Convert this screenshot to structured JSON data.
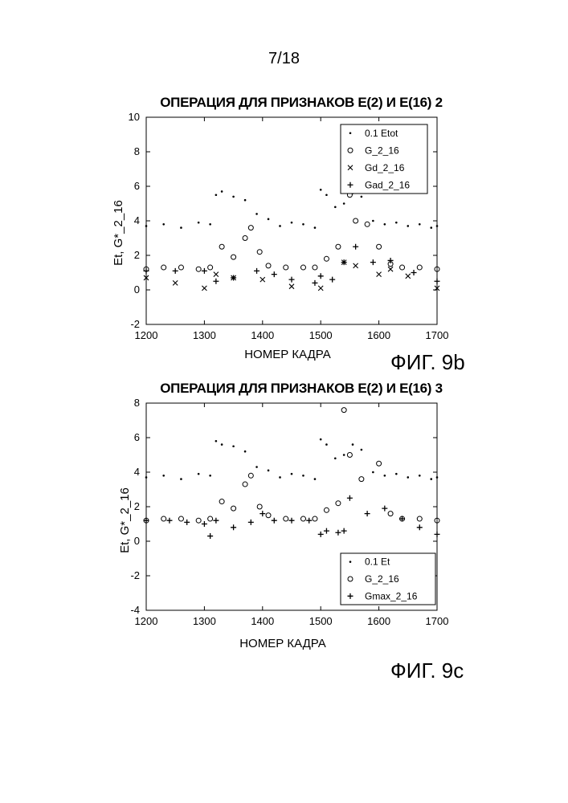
{
  "page": {
    "number": "7/18"
  },
  "figures": [
    {
      "label": "ФИГ. 9b"
    },
    {
      "label": "ФИГ. 9c"
    }
  ],
  "chart_data": [
    {
      "type": "scatter",
      "title": "ОПЕРАЦИЯ ДЛЯ ПРИЗНАКОВ E(2) И E(16) 2",
      "xlabel": "НОМЕР КАДРА",
      "ylabel": "Et, G*_2_16",
      "xlim": [
        1200,
        1700
      ],
      "ylim": [
        -2,
        10
      ],
      "xticks": [
        1200,
        1300,
        1400,
        1500,
        1600,
        1700
      ],
      "yticks": [
        -2,
        0,
        2,
        4,
        6,
        8,
        10
      ],
      "legend_position": "top-right",
      "series": [
        {
          "name": "0.1 Etot",
          "marker": "dot",
          "x": [
            1200,
            1230,
            1260,
            1290,
            1310,
            1320,
            1330,
            1350,
            1370,
            1390,
            1410,
            1430,
            1450,
            1470,
            1490,
            1500,
            1510,
            1525,
            1540,
            1555,
            1570,
            1590,
            1610,
            1630,
            1650,
            1670,
            1690,
            1700
          ],
          "y": [
            3.7,
            3.8,
            3.6,
            3.9,
            3.8,
            5.5,
            5.7,
            5.4,
            5.2,
            4.4,
            4.1,
            3.7,
            3.9,
            3.8,
            3.6,
            5.8,
            5.5,
            4.8,
            5.0,
            5.6,
            5.4,
            4.0,
            3.8,
            3.9,
            3.7,
            3.8,
            3.6,
            3.7
          ]
        },
        {
          "name": "G_2_16",
          "marker": "circle",
          "x": [
            1200,
            1230,
            1260,
            1290,
            1310,
            1330,
            1350,
            1370,
            1380,
            1395,
            1410,
            1440,
            1470,
            1490,
            1510,
            1530,
            1550,
            1560,
            1580,
            1600,
            1620,
            1640,
            1670,
            1700
          ],
          "y": [
            1.2,
            1.3,
            1.3,
            1.2,
            1.3,
            2.5,
            1.9,
            3.0,
            3.6,
            2.2,
            1.4,
            1.3,
            1.3,
            1.3,
            1.8,
            2.5,
            5.5,
            4.0,
            3.8,
            2.5,
            1.5,
            1.3,
            1.3,
            1.2
          ]
        },
        {
          "name": "Gd_2_16",
          "marker": "x",
          "x": [
            1200,
            1250,
            1300,
            1320,
            1350,
            1400,
            1450,
            1500,
            1540,
            1560,
            1600,
            1620,
            1650,
            1700
          ],
          "y": [
            0.7,
            0.4,
            0.1,
            0.9,
            0.7,
            0.6,
            0.2,
            0.1,
            1.6,
            1.4,
            0.9,
            1.2,
            0.8,
            0.1
          ]
        },
        {
          "name": "Gad_2_16",
          "marker": "plus",
          "x": [
            1200,
            1250,
            1300,
            1320,
            1350,
            1390,
            1420,
            1450,
            1490,
            1500,
            1520,
            1540,
            1560,
            1590,
            1620,
            1660,
            1700
          ],
          "y": [
            1.1,
            1.1,
            1.1,
            0.5,
            0.7,
            1.1,
            0.9,
            0.6,
            0.4,
            0.8,
            0.6,
            1.6,
            2.5,
            1.6,
            1.7,
            1.0,
            0.5
          ]
        }
      ]
    },
    {
      "type": "scatter",
      "title": "ОПЕРАЦИЯ ДЛЯ ПРИЗНАКОВ E(2) И E(16) 3",
      "xlabel": "НОМЕР КАДРА",
      "ylabel": "Et, G*_2_16",
      "xlim": [
        1200,
        1700
      ],
      "ylim": [
        -4,
        8
      ],
      "xticks": [
        1200,
        1300,
        1400,
        1500,
        1600,
        1700
      ],
      "yticks": [
        -4,
        -2,
        0,
        2,
        4,
        6,
        8
      ],
      "legend_position": "bottom-right",
      "series": [
        {
          "name": "0.1 Et",
          "marker": "dot",
          "x": [
            1200,
            1230,
            1260,
            1290,
            1310,
            1320,
            1330,
            1350,
            1370,
            1390,
            1410,
            1430,
            1450,
            1470,
            1490,
            1500,
            1510,
            1525,
            1540,
            1555,
            1570,
            1590,
            1610,
            1630,
            1650,
            1670,
            1690,
            1700
          ],
          "y": [
            3.7,
            3.8,
            3.6,
            3.9,
            3.8,
            5.8,
            5.6,
            5.5,
            5.2,
            4.3,
            4.1,
            3.7,
            3.9,
            3.8,
            3.6,
            5.9,
            5.6,
            4.8,
            5.0,
            5.6,
            5.3,
            4.0,
            3.8,
            3.9,
            3.7,
            3.8,
            3.6,
            3.7
          ]
        },
        {
          "name": "G_2_16",
          "marker": "circle",
          "x": [
            1200,
            1230,
            1260,
            1290,
            1310,
            1330,
            1350,
            1370,
            1380,
            1395,
            1410,
            1440,
            1470,
            1490,
            1510,
            1530,
            1540,
            1550,
            1570,
            1600,
            1620,
            1640,
            1670,
            1700
          ],
          "y": [
            1.2,
            1.3,
            1.3,
            1.2,
            1.3,
            2.3,
            1.9,
            3.3,
            3.8,
            2.0,
            1.5,
            1.3,
            1.3,
            1.3,
            1.8,
            2.2,
            7.6,
            5.0,
            3.6,
            4.5,
            1.6,
            1.3,
            1.3,
            1.2
          ]
        },
        {
          "name": "Gmax_2_16",
          "marker": "plus",
          "x": [
            1200,
            1240,
            1270,
            1300,
            1310,
            1320,
            1350,
            1380,
            1400,
            1420,
            1450,
            1480,
            1500,
            1510,
            1530,
            1540,
            1550,
            1580,
            1610,
            1640,
            1670,
            1700
          ],
          "y": [
            1.2,
            1.2,
            1.1,
            1.0,
            0.3,
            1.2,
            0.8,
            1.1,
            1.6,
            1.2,
            1.2,
            1.2,
            0.4,
            0.6,
            0.5,
            0.6,
            2.5,
            1.6,
            1.9,
            1.3,
            0.8,
            0.4
          ]
        }
      ]
    }
  ]
}
